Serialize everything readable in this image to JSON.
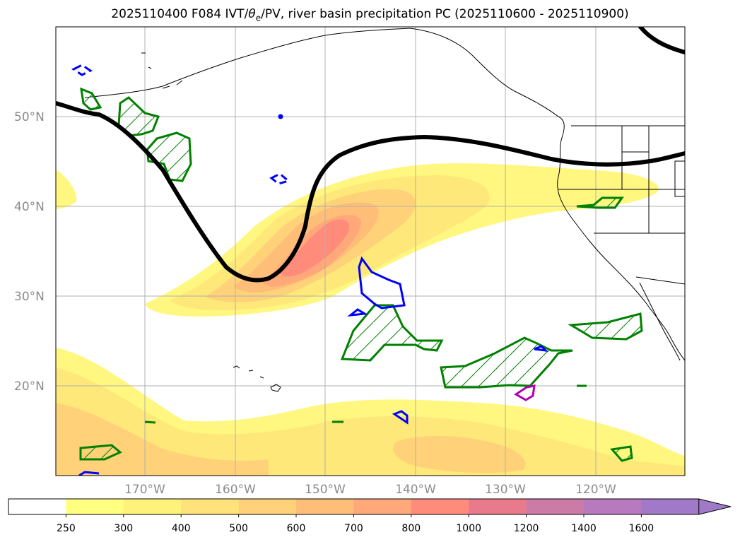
{
  "title_prefix": "2025110400 F084 IVT/",
  "title_theta": "θ",
  "title_theta_sub": "e",
  "title_suffix": "/PV, river basin precipitation PC (2025110600 - 2025110900)",
  "lat_labels": [
    "50°N",
    "40°N",
    "30°N",
    "20°N"
  ],
  "lon_labels": [
    "170°W",
    "160°W",
    "150°W",
    "140°W",
    "130°W",
    "120°W"
  ],
  "colorbar": {
    "levels": [
      "250",
      "300",
      "400",
      "500",
      "600",
      "700",
      "800",
      "1000",
      "1200",
      "1400",
      "1600"
    ],
    "colors": [
      "#ffffff",
      "#ffff80",
      "#fff27a",
      "#ffe27a",
      "#ffd27a",
      "#ffbe78",
      "#ffa87a",
      "#ff8c7a",
      "#e87a8c",
      "#cc7aa6",
      "#b77abf",
      "#a07ac8"
    ],
    "extend": "max"
  },
  "colors": {
    "ivt_light": "#fff780",
    "ivt_mid": "#ffd27a",
    "ivt_core": "#ff8c7a",
    "theta_pv_line": "#000000",
    "green_contour": "#008000",
    "blue_contour": "#0000ff",
    "magenta_contour": "#b000b0",
    "grid": "#b0b0b0",
    "coastline": "#000000"
  }
}
